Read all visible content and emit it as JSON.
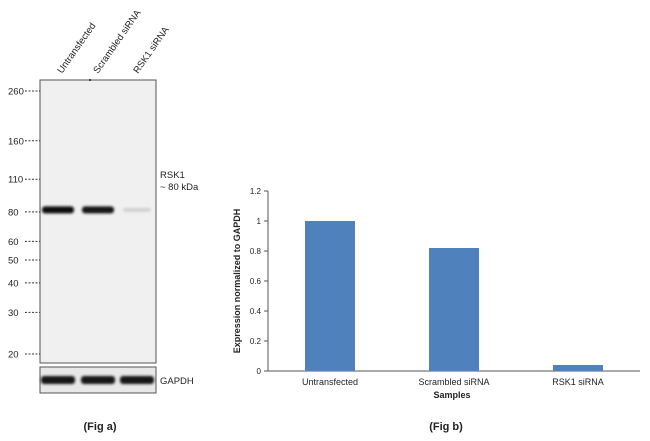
{
  "fig_a": {
    "caption": "(Fig a)",
    "lane_labels": [
      "Untransfected",
      "Scrambled siRNA",
      "RSK1 siRNA"
    ],
    "mw_markers": [
      "260",
      "160",
      "110",
      "80",
      "60",
      "50",
      "40",
      "30",
      "20"
    ],
    "mw_values": [
      260,
      160,
      110,
      80,
      60,
      50,
      40,
      30,
      20
    ],
    "target_label": "RSK1",
    "target_size_label": "~ 80 kDa",
    "target_mw": 80,
    "band_intensity": [
      1.0,
      0.95,
      0.12
    ],
    "loading_control_label": "GAPDH"
  },
  "chart_data": {
    "type": "bar",
    "caption": "(Fig b)",
    "categories": [
      "Untransfected",
      "Scrambled siRNA",
      "RSK1 siRNA"
    ],
    "values": [
      1.0,
      0.82,
      0.04
    ],
    "xlabel": "Samples",
    "ylabel": "Expression  normalized to GAPDH",
    "ylim": [
      0,
      1.2
    ],
    "yticks": [
      0,
      0.2,
      0.4,
      0.6,
      0.8,
      1,
      1.2
    ],
    "ytick_labels": [
      "0",
      "0.2",
      "0.4",
      "0.6",
      "0.8",
      "1",
      "1.2"
    ],
    "bar_color": "#4f81bd",
    "grid": false,
    "legend": false
  }
}
